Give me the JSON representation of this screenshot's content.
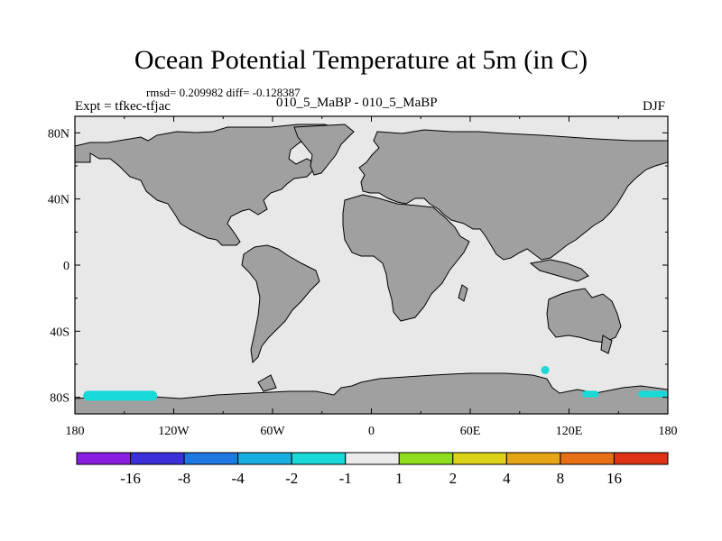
{
  "chart_data": {
    "type": "heatmap",
    "title": "Ocean Potential Temperature at 5m (in C)",
    "stats": "rmsd= 0.209982 diff= -0.128387",
    "subtitle": "010_5_MaBP - 010_5_MaBP",
    "experiment": "Expt = tfkec-tfjac",
    "season": "DJF",
    "xlim": [
      -180,
      180
    ],
    "ylim": [
      -90,
      90
    ],
    "x_ticks": [
      {
        "value": -180,
        "label": "180"
      },
      {
        "value": -120,
        "label": "120W"
      },
      {
        "value": -60,
        "label": "60W"
      },
      {
        "value": 0,
        "label": "0"
      },
      {
        "value": 60,
        "label": "60E"
      },
      {
        "value": 120,
        "label": "120E"
      },
      {
        "value": 180,
        "label": "180"
      }
    ],
    "y_ticks": [
      {
        "value": 80,
        "label": "80N"
      },
      {
        "value": 40,
        "label": "40N"
      },
      {
        "value": 0,
        "label": "0"
      },
      {
        "value": -40,
        "label": "40S"
      },
      {
        "value": -80,
        "label": "80S"
      }
    ],
    "colorbar": {
      "colors": [
        "#8a1ee0",
        "#3a2fd8",
        "#1e78e0",
        "#1aaee0",
        "#19d8d8",
        "#ebebeb",
        "#90dc1e",
        "#dcd219",
        "#e6a514",
        "#e66e14",
        "#e03214"
      ],
      "labels": [
        "-16",
        "-8",
        "-4",
        "-2",
        "-1",
        "1",
        "2",
        "4",
        "8",
        "16"
      ]
    },
    "background_color": "#e8e8e8",
    "land_color": "#a0a0a0",
    "anomaly_regions": [
      {
        "name": "Ross Sea",
        "lon": [
          -175,
          -130
        ],
        "lat": [
          -82,
          -76
        ],
        "class": "-2 to -1",
        "color": "#19d8d8"
      },
      {
        "name": "East Antarctic coast",
        "lon": [
          128,
          138
        ],
        "lat": [
          -80,
          -76
        ],
        "class": "-2 to -1",
        "color": "#19d8d8"
      },
      {
        "name": "Ross Sea east",
        "lon": [
          162,
          180
        ],
        "lat": [
          -80,
          -76
        ],
        "class": "-2 to -1",
        "color": "#19d8d8"
      },
      {
        "name": "Indian sector",
        "lon": [
          103,
          108
        ],
        "lat": [
          -66,
          -61
        ],
        "class": "-2 to -1",
        "color": "#19d8d8"
      }
    ]
  }
}
